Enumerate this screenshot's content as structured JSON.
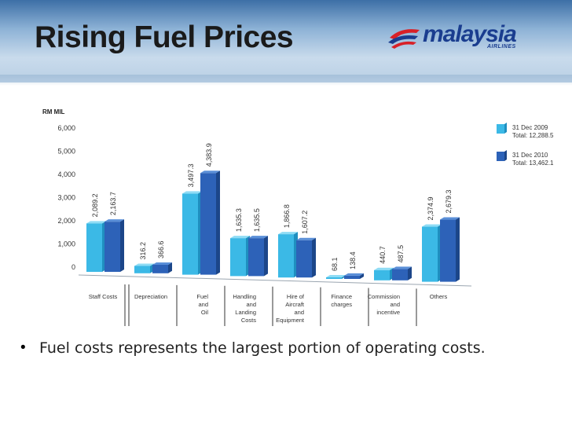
{
  "slide": {
    "title": "Rising Fuel Prices",
    "bullet": "Fuel costs represents the largest portion of operating costs.",
    "bullet_symbol": "•"
  },
  "logo": {
    "text": "malaysia",
    "sub": "AIRLINES",
    "colors": {
      "red": "#d82027",
      "blue": "#1a3d8f"
    }
  },
  "chart_data": {
    "type": "bar",
    "unit_label": "RM MIL",
    "ylim": [
      0,
      6000
    ],
    "yticks": [
      "6,000",
      "5,000",
      "4,000",
      "3,000",
      "2,000",
      "1,000",
      "0"
    ],
    "ytick_values": [
      6000,
      5000,
      4000,
      3000,
      2000,
      1000,
      0
    ],
    "categories": [
      [
        "Staff Costs"
      ],
      [
        "Depreciation"
      ],
      [
        "Fuel",
        "and",
        "Oil"
      ],
      [
        "Handling",
        "and",
        "Landing",
        "Costs"
      ],
      [
        "Hire of",
        "Aircraft",
        "and",
        "Equipment"
      ],
      [
        "Finance",
        "charges"
      ],
      [
        "Commission",
        "and",
        "incentive"
      ],
      [
        "Others"
      ]
    ],
    "series": [
      {
        "name": "31 Dec 2009",
        "total": "Total: 12,288.5",
        "values": [
          2089.2,
          316.2,
          3497.3,
          1635.3,
          1866.8,
          68.1,
          440.7,
          2374.9
        ],
        "labels": [
          "2,089.2",
          "316.2",
          "3,497.3",
          "1,635.3",
          "1,866.8",
          "68.1",
          "440.7",
          "2,374.9"
        ],
        "color": "#3bb9e6"
      },
      {
        "name": "31 Dec 2010",
        "total": "Total: 13,462.1",
        "values": [
          2163.7,
          366.6,
          4383.9,
          1635.5,
          1607.2,
          138.4,
          487.5,
          2679.3
        ],
        "labels": [
          "2,163.7",
          "366.6",
          "4,383.9",
          "1,635.5",
          "1,607.2",
          "138.4",
          "487.5",
          "2,679.3"
        ],
        "color": "#2d62b8"
      }
    ],
    "legend": "top-right",
    "grid": false
  }
}
